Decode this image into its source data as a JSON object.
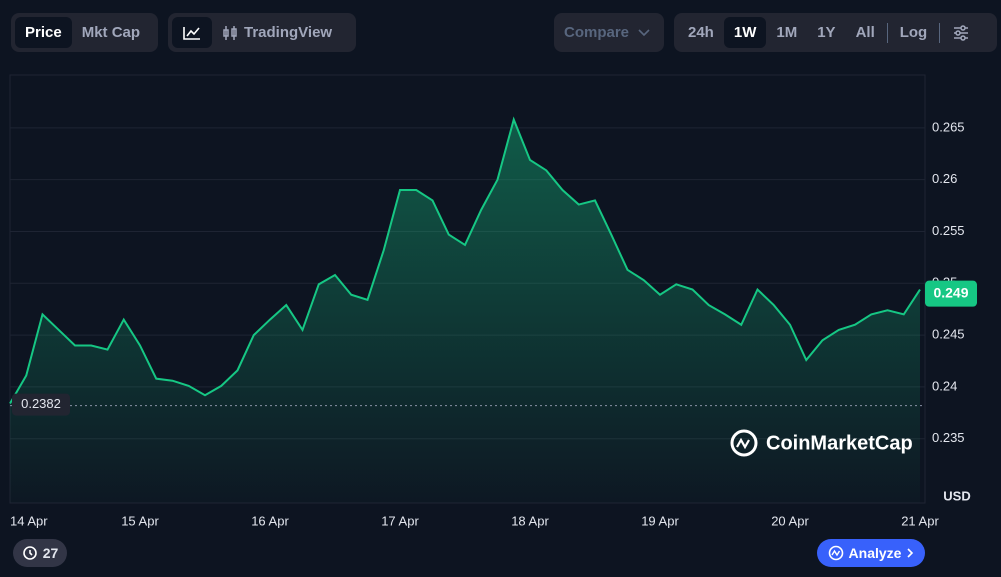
{
  "toolbar": {
    "price": "Price",
    "mkt_cap": "Mkt Cap",
    "tradingview": "TradingView",
    "compare": "Compare",
    "ranges": [
      "24h",
      "1W",
      "1M",
      "1Y",
      "All"
    ],
    "log": "Log"
  },
  "watermark": "CoinMarketCap",
  "history_count": "27",
  "analyze": "Analyze",
  "chart_data": {
    "type": "area",
    "y_unit": "USD",
    "categories": [
      "14 Apr",
      null,
      null,
      null,
      null,
      null,
      null,
      null,
      "15 Apr",
      null,
      null,
      null,
      null,
      null,
      null,
      null,
      "16 Apr",
      null,
      null,
      null,
      null,
      null,
      null,
      null,
      "17 Apr",
      null,
      null,
      null,
      null,
      null,
      null,
      null,
      "18 Apr",
      null,
      null,
      null,
      null,
      null,
      null,
      null,
      "19 Apr",
      null,
      null,
      null,
      null,
      null,
      null,
      null,
      "20 Apr",
      null,
      null,
      null,
      null,
      null,
      null,
      null,
      "21 Apr"
    ],
    "series": [
      {
        "name": "Price",
        "color": "#16c784",
        "values": [
          0.2384,
          0.2411,
          0.247,
          0.2455,
          0.244,
          0.244,
          0.2436,
          0.2465,
          0.244,
          0.2408,
          0.2406,
          0.2401,
          0.2392,
          0.2401,
          0.2416,
          0.245,
          0.2465,
          0.2479,
          0.2455,
          0.2499,
          0.2508,
          0.2489,
          0.2484,
          0.2532,
          0.259,
          0.259,
          0.258,
          0.2547,
          0.2537,
          0.2571,
          0.26,
          0.2658,
          0.2619,
          0.2609,
          0.259,
          0.2576,
          0.258,
          0.2547,
          0.2513,
          0.2503,
          0.2489,
          0.2499,
          0.2494,
          0.2479,
          0.247,
          0.246,
          0.2494,
          0.2479,
          0.246,
          0.2426,
          0.2445,
          0.2455,
          0.246,
          0.247,
          0.2474,
          0.247,
          0.2494
        ]
      }
    ],
    "ylim": [
      0.2288,
      0.2701
    ],
    "yticks": [
      0.235,
      0.24,
      0.245,
      0.25,
      0.255,
      0.26,
      0.265
    ],
    "grid": true,
    "start_price": {
      "value": 0.2382,
      "label": "0.2382"
    },
    "last_price": {
      "value": 0.249,
      "label": "0.249"
    }
  }
}
